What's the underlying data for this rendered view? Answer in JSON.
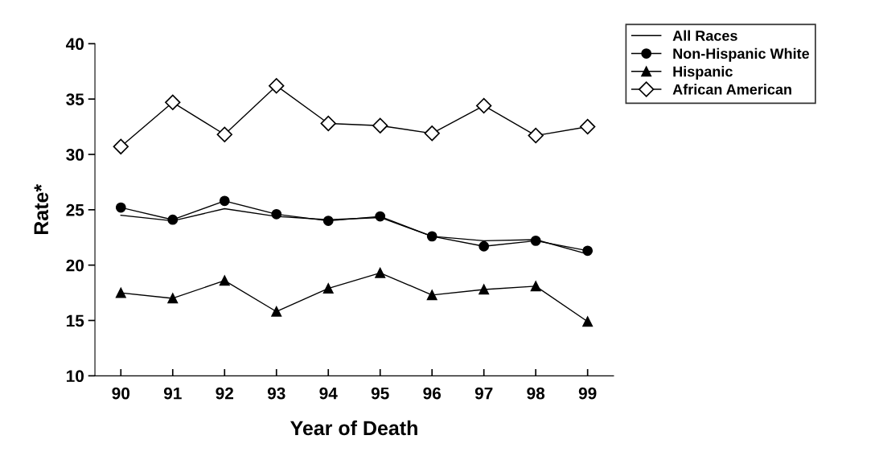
{
  "chart_data": {
    "type": "line",
    "xlabel": "Year of Death",
    "ylabel": "Rate*",
    "categories": [
      "90",
      "91",
      "92",
      "93",
      "94",
      "95",
      "96",
      "97",
      "98",
      "99"
    ],
    "ylim": [
      10,
      40
    ],
    "yticks": [
      10,
      15,
      20,
      25,
      30,
      35,
      40
    ],
    "grid": false,
    "legend": "top right",
    "series": [
      {
        "name": "All Races",
        "color": "#000000",
        "marker": "none",
        "values": [
          24.5,
          24.0,
          25.1,
          24.4,
          24.1,
          24.3,
          22.6,
          22.2,
          22.3,
          21.0
        ]
      },
      {
        "name": "Non-Hispanic White",
        "color": "#000000",
        "marker": "circle",
        "values": [
          25.2,
          24.1,
          25.8,
          24.6,
          24.0,
          24.4,
          22.6,
          21.7,
          22.2,
          21.3
        ]
      },
      {
        "name": "Hispanic",
        "color": "#000000",
        "marker": "triangle",
        "values": [
          17.5,
          17.0,
          18.6,
          15.8,
          17.9,
          19.3,
          17.3,
          17.8,
          18.1,
          14.9
        ]
      },
      {
        "name": "African American",
        "color": "#000000",
        "marker": "diamond",
        "values": [
          30.7,
          34.7,
          31.8,
          36.2,
          32.8,
          32.6,
          31.9,
          34.4,
          31.7,
          32.5
        ]
      }
    ]
  }
}
